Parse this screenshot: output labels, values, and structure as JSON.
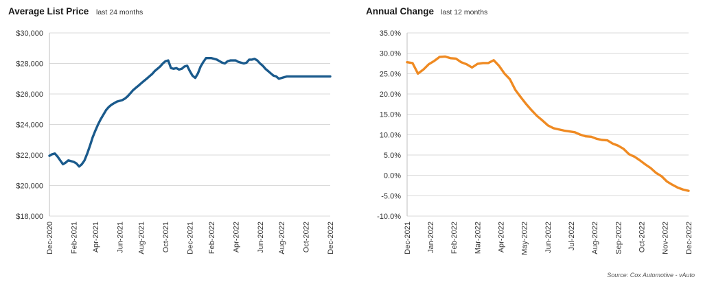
{
  "source_note": "Source: Cox Automotive - vAuto",
  "chart_data": [
    {
      "type": "line",
      "title": "Average List Price",
      "subtitle": "last 24 months",
      "xlabel": "",
      "ylabel": "",
      "ylim": [
        18000,
        30000
      ],
      "yticks": [
        18000,
        20000,
        22000,
        24000,
        26000,
        28000,
        30000
      ],
      "ytick_labels": [
        "$18,000",
        "$20,000",
        "$22,000",
        "$24,000",
        "$26,000",
        "$28,000",
        "$30,000"
      ],
      "xlim": [
        0,
        104
      ],
      "xtick_positions": [
        0,
        9,
        17,
        26,
        34,
        43,
        52,
        60,
        69,
        78,
        86,
        95,
        104
      ],
      "xtick_labels": [
        "Dec-2020",
        "Feb-2021",
        "Apr-2021",
        "Jun-2021",
        "Aug-2021",
        "Oct-2021",
        "Dec-2021",
        "Feb-2022",
        "Apr-2022",
        "Jun-2022",
        "Aug-2022",
        "Oct-2022",
        "Dec-2022"
      ],
      "grid": "horizontal",
      "legend": "none",
      "color": "#1a5a8c",
      "series": [
        {
          "x": [
            0,
            1,
            2,
            3,
            4,
            5,
            6,
            7,
            8,
            9,
            10,
            11,
            12,
            13,
            14,
            15,
            16,
            17,
            18,
            19,
            20,
            21,
            22,
            23,
            24,
            25,
            26,
            27,
            28,
            29,
            30,
            31,
            32,
            33,
            34,
            35,
            36,
            37,
            38,
            39,
            40,
            41,
            42,
            43,
            44,
            45,
            46,
            47,
            48,
            49,
            50,
            51,
            52,
            53,
            54,
            55,
            56,
            57,
            58,
            59,
            60,
            61,
            62,
            63,
            64,
            65,
            66,
            67,
            68,
            69,
            70,
            71,
            72,
            73,
            74,
            75,
            76,
            77,
            78,
            79,
            80,
            81,
            82,
            83,
            84,
            85,
            86,
            87,
            88,
            89,
            90,
            91,
            92,
            93,
            94,
            95,
            96,
            97,
            98,
            99,
            100,
            101,
            102,
            103,
            104
          ],
          "values": [
            21950,
            22050,
            22100,
            21900,
            21650,
            21400,
            21500,
            21650,
            21600,
            21550,
            21450,
            21250,
            21400,
            21650,
            22100,
            22600,
            23150,
            23600,
            24000,
            24350,
            24650,
            24950,
            25150,
            25300,
            25400,
            25500,
            25550,
            25600,
            25700,
            25850,
            26050,
            26250,
            26400,
            26550,
            26700,
            26850,
            27000,
            27150,
            27300,
            27500,
            27650,
            27800,
            28000,
            28150,
            28200,
            27700,
            27650,
            27700,
            27600,
            27650,
            27800,
            27850,
            27500,
            27200,
            27050,
            27350,
            27800,
            28100,
            28350,
            28350,
            28350,
            28300,
            28250,
            28150,
            28050,
            28000,
            28150,
            28200,
            28200,
            28200,
            28100,
            28050,
            28000,
            28050,
            28250,
            28250,
            28300,
            28200,
            28000,
            27850,
            27650,
            27500,
            27350,
            27200,
            27150,
            27000,
            27050,
            27100,
            27150,
            27150,
            27150,
            27150,
            27150,
            27150,
            27150,
            27150,
            27150,
            27150,
            27150,
            27150,
            27150,
            27150,
            27150,
            27150,
            27150
          ]
        }
      ]
    },
    {
      "type": "line",
      "title": "Annual Change",
      "subtitle": "last 12 months",
      "xlabel": "",
      "ylabel": "",
      "ylim": [
        -10,
        35
      ],
      "yticks": [
        -10,
        -5,
        0,
        5,
        10,
        15,
        20,
        25,
        30,
        35
      ],
      "ytick_labels": [
        "-10.0%",
        "-5.0%",
        "0.0%",
        "5.0%",
        "10.0%",
        "15.0%",
        "20.0%",
        "25.0%",
        "30.0%",
        "35.0%"
      ],
      "xlim": [
        0,
        52
      ],
      "xtick_positions": [
        0,
        4.3,
        8.6,
        13,
        17.3,
        21.6,
        26,
        30.3,
        34.6,
        39,
        43.3,
        47.6,
        52
      ],
      "xtick_labels": [
        "Dec-2021",
        "Jan-2022",
        "Feb-2022",
        "Mar-2022",
        "Apr-2022",
        "May-2022",
        "Jun-2022",
        "Jul-2022",
        "Aug-2022",
        "Sep-2022",
        "Oct-2022",
        "Nov-2022",
        "Dec-2022"
      ],
      "grid": "horizontal",
      "legend": "none",
      "color": "#ef8a22",
      "series": [
        {
          "x": [
            0,
            1,
            2,
            3,
            4,
            5,
            6,
            7,
            8,
            9,
            10,
            11,
            12,
            13,
            14,
            15,
            16,
            17,
            18,
            19,
            20,
            21,
            22,
            23,
            24,
            25,
            26,
            27,
            28,
            29,
            30,
            31,
            32,
            33,
            34,
            35,
            36,
            37,
            38,
            39,
            40,
            41,
            42,
            43,
            44,
            45,
            46,
            47,
            48,
            49,
            50,
            51,
            52
          ],
          "values": [
            27.8,
            27.6,
            25.0,
            26.0,
            27.3,
            28.1,
            29.1,
            29.2,
            28.8,
            28.7,
            27.8,
            27.3,
            26.5,
            27.4,
            27.6,
            27.6,
            28.3,
            26.9,
            25.0,
            23.6,
            21.0,
            19.2,
            17.5,
            16.0,
            14.6,
            13.5,
            12.3,
            11.6,
            11.3,
            11.0,
            10.8,
            10.6,
            10.0,
            9.6,
            9.5,
            9.0,
            8.7,
            8.6,
            7.8,
            7.3,
            6.5,
            5.2,
            4.6,
            3.7,
            2.7,
            1.8,
            0.6,
            -0.2,
            -1.5,
            -2.3,
            -3.0,
            -3.5,
            -3.8
          ]
        }
      ]
    }
  ]
}
